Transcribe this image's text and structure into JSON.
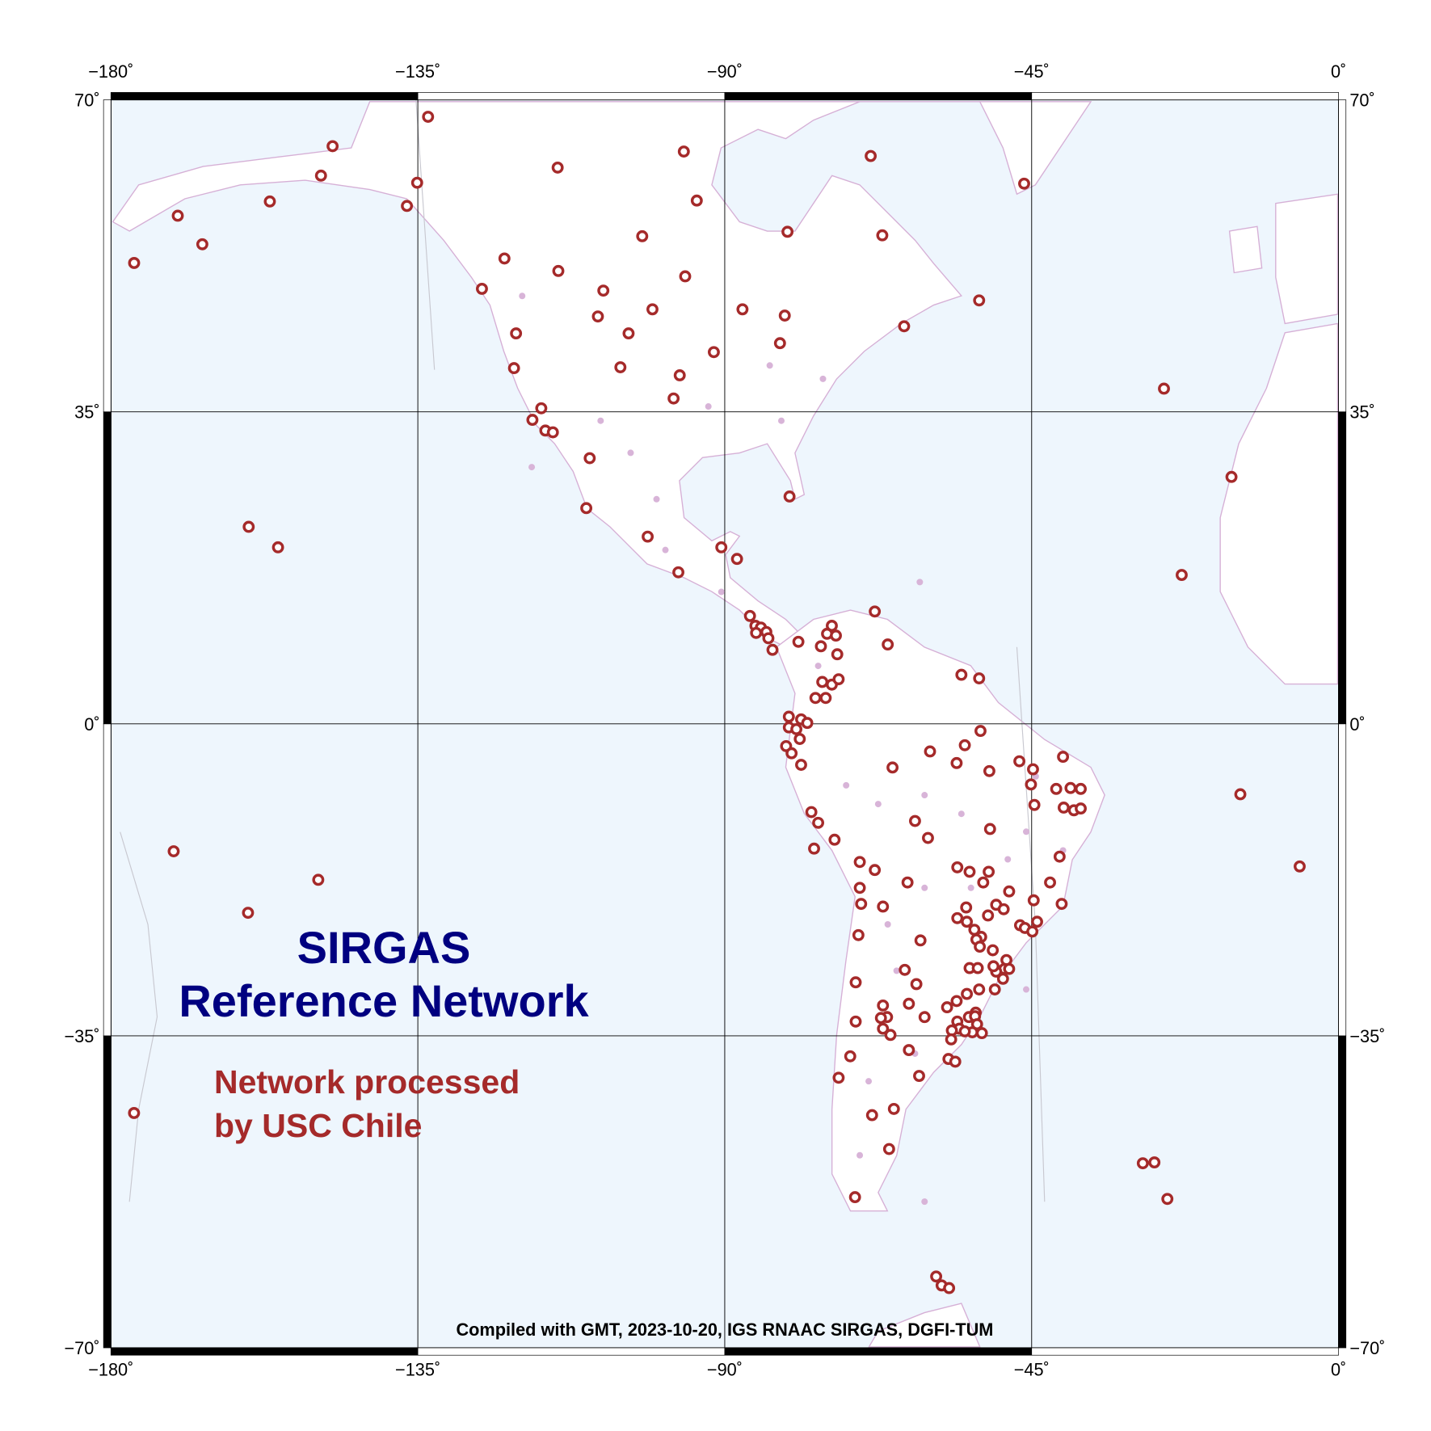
{
  "chart_data": {
    "type": "scatter",
    "title": "SIRGAS\nReference Network",
    "note": "Compiled with GMT, 2023-10-20, IGS RNAAC SIRGAS, DGFI-TUM",
    "xlim": [
      -180,
      0
    ],
    "ylim": [
      -70,
      70
    ],
    "xticks": [
      {
        "value": -180,
        "label": "−180˚"
      },
      {
        "value": -135,
        "label": "−135˚"
      },
      {
        "value": -90,
        "label": "−90˚"
      },
      {
        "value": -45,
        "label": "−45˚"
      },
      {
        "value": 0,
        "label": "0˚"
      }
    ],
    "yticks": [
      {
        "value": 70,
        "label": "70˚"
      },
      {
        "value": 35,
        "label": "35˚"
      },
      {
        "value": 0,
        "label": "0˚"
      },
      {
        "value": -35,
        "label": "−35˚"
      },
      {
        "value": -70,
        "label": "−70˚"
      }
    ],
    "grid": true,
    "legend": "lower left",
    "series": [
      {
        "name": "Network processed\nby USC Chile",
        "color": "#a52a2a",
        "marker": "ring",
        "x": [
          -170.2,
          -166.6,
          -156.7,
          -149.2,
          -147.5,
          -136.6,
          -135.1,
          -133.5,
          -125.6,
          -122.3,
          -114.4,
          -114.5,
          -120.6,
          -120.9,
          -116.9,
          -118.2,
          -116.3,
          -115.2,
          -109.8,
          -110.3,
          -107.8,
          -108.6,
          -104.1,
          -105.3,
          -100.6,
          -102.1,
          -96.0,
          -94.1,
          -95.8,
          -96.6,
          -97.5,
          -91.6,
          -101.3,
          -96.8,
          -90.5,
          -88.2,
          -87.4,
          -81.2,
          -81.9,
          -80.8,
          -68.6,
          -66.9,
          -63.7,
          -52.7,
          -46.1,
          -80.5,
          -25.6,
          -15.7,
          -23.0,
          -159.8,
          -155.5,
          -170.8,
          -149.6,
          -159.9,
          -176.6,
          -14.4,
          -5.7,
          -28.7,
          -27.0,
          -25.1,
          -59.0,
          -58.2,
          -57.1,
          -70.9,
          -86.3,
          -85.5,
          -84.7,
          -83.9,
          -85.4,
          -83.6,
          -83.0,
          -79.2,
          -68.0,
          -66.1,
          -74.3,
          -75.0,
          -73.7,
          -75.9,
          -73.5,
          -75.7,
          -74.3,
          -73.3,
          -76.7,
          -75.2,
          -55.3,
          -52.7,
          -80.6,
          -78.8,
          -77.9,
          -80.6,
          -79.5,
          -79.0,
          -81.0,
          -80.2,
          -78.8,
          -77.3,
          -76.3,
          -76.9,
          -73.9,
          -52.5,
          -54.8,
          -59.9,
          -56.0,
          -65.4,
          -51.2,
          -46.8,
          -44.8,
          -40.4,
          -45.1,
          -41.4,
          -39.3,
          -37.8,
          -44.6,
          -40.3,
          -38.8,
          -37.8,
          -51.1,
          -62.1,
          -60.2,
          -40.9,
          -70.2,
          -68.0,
          -55.9,
          -54.1,
          -51.3,
          -70.2,
          -63.2,
          -70.0,
          -66.8,
          -52.1,
          -48.3,
          -42.3,
          -40.6,
          -44.7,
          -54.6,
          -51.4,
          -50.2,
          -49.1,
          -55.9,
          -54.5,
          -44.2,
          -46.7,
          -46.0,
          -44.9,
          -53.4,
          -52.4,
          -53.1,
          -52.6,
          -50.7,
          -70.4,
          -61.3,
          -48.7,
          -49.0,
          -50.2,
          -48.3,
          -49.2,
          -54.1,
          -52.9,
          -50.6,
          -63.6,
          -70.8,
          -61.9,
          -52.7,
          -50.4,
          -54.5,
          -63.0,
          -56.0,
          -57.4,
          -66.8,
          -66.2,
          -67.1,
          -53.2,
          -70.8,
          -60.7,
          -55.9,
          -54.2,
          -53.3,
          -55.6,
          -53.0,
          -53.7,
          -52.3,
          -54.8,
          -56.7,
          -56.8,
          -66.8,
          -65.7,
          -63.0,
          -71.6,
          -61.5,
          -57.2,
          -56.2,
          -73.3,
          -65.2,
          -68.4,
          -65.9
        ],
        "y": [
          57.0,
          53.8,
          58.6,
          61.5,
          64.8,
          58.1,
          60.7,
          68.1,
          48.8,
          52.2,
          50.8,
          62.4,
          43.8,
          39.9,
          35.4,
          34.1,
          32.9,
          32.7,
          29.8,
          24.2,
          48.6,
          45.7,
          43.8,
          40.0,
          46.5,
          54.7,
          64.2,
          58.7,
          50.2,
          39.1,
          36.5,
          41.7,
          21.0,
          17.0,
          19.8,
          18.5,
          46.5,
          45.8,
          42.7,
          55.2,
          63.7,
          54.8,
          44.6,
          47.5,
          60.6,
          25.5,
          37.6,
          27.7,
          16.7,
          22.1,
          19.8,
          -14.3,
          -17.5,
          -21.2,
          51.7,
          -7.9,
          -16.0,
          -49.3,
          -49.2,
          -53.3,
          -62.0,
          -63.0,
          -63.3,
          -53.1,
          12.1,
          11.0,
          10.8,
          10.3,
          10.2,
          9.6,
          8.3,
          9.2,
          12.6,
          8.9,
          11.0,
          10.1,
          9.9,
          8.7,
          7.8,
          4.7,
          4.4,
          5.0,
          2.9,
          2.9,
          5.5,
          5.1,
          0.8,
          0.5,
          0.1,
          -0.4,
          -0.6,
          -1.7,
          -2.5,
          -3.3,
          -4.6,
          -9.9,
          -11.1,
          -14.0,
          -13.0,
          -0.8,
          -2.4,
          -3.1,
          -4.4,
          -4.9,
          -5.3,
          -4.2,
          -5.1,
          -3.7,
          -6.8,
          -7.3,
          -7.2,
          -7.3,
          -9.1,
          -9.4,
          -9.7,
          -9.5,
          -11.8,
          -10.9,
          -12.8,
          -14.9,
          -15.5,
          -16.4,
          -16.1,
          -16.6,
          -16.6,
          -18.4,
          -17.8,
          -20.2,
          -20.5,
          -17.8,
          -18.8,
          -17.8,
          -20.2,
          -19.8,
          -20.6,
          -21.5,
          -20.3,
          -20.8,
          -21.8,
          -22.2,
          -22.2,
          -22.6,
          -22.9,
          -23.3,
          -23.1,
          -23.9,
          -24.2,
          -25.0,
          -25.4,
          -23.7,
          -24.3,
          -26.5,
          -27.5,
          -27.8,
          -27.5,
          -28.6,
          -27.4,
          -27.4,
          -27.2,
          -27.6,
          -29.0,
          -29.2,
          -29.8,
          -29.8,
          -30.3,
          -31.4,
          -31.1,
          -31.8,
          -31.6,
          -32.9,
          -33.0,
          -32.4,
          -33.4,
          -32.9,
          -33.4,
          -32.9,
          -32.8,
          -34.2,
          -33.7,
          -34.6,
          -34.7,
          -34.5,
          -34.4,
          -35.4,
          -34.2,
          -34.9,
          -36.6,
          -37.3,
          -39.5,
          -37.6,
          -37.9,
          -39.7,
          -43.2,
          -43.9,
          -47.7
        ]
      },
      {
        "color": "#d8b4d8",
        "marker": "dot",
        "x": [
          -119.7,
          -108.2,
          -103.8,
          -98.7,
          -92.4,
          -83.4,
          -75.6,
          -81.7,
          -118.3,
          -100.0,
          -90.5,
          -61.4,
          -76.3,
          -72.2,
          -67.5,
          -60.7,
          -55.3,
          -45.8,
          -40.4,
          -60.7,
          -53.9,
          -66.1,
          -62.1,
          -68.9,
          -70.2,
          -60.7,
          -45.8,
          -64.8,
          -48.5,
          -44.4
        ],
        "y": [
          48.0,
          34.0,
          30.4,
          19.5,
          35.6,
          40.2,
          38.7,
          34.0,
          28.8,
          25.2,
          14.8,
          15.9,
          6.5,
          -6.9,
          -9.0,
          -8.0,
          -10.1,
          -12.1,
          -14.2,
          -18.4,
          -18.4,
          -22.5,
          -37.0,
          -40.1,
          -48.4,
          -53.6,
          -29.8,
          -27.7,
          -15.2,
          -5.9
        ]
      }
    ]
  }
}
